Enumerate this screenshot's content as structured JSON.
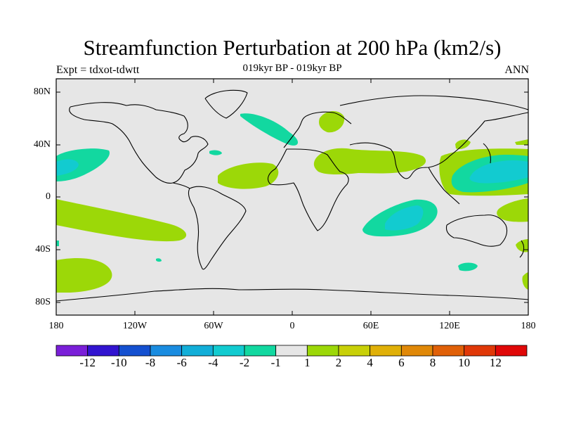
{
  "title": "Streamfunction Perturbation at 200 hPa (km2/s)",
  "experiment": "Expt = tdxot-tdwtt",
  "subtitle": "019kyr BP - 019kyr BP",
  "season": "ANN",
  "lat_labels": [
    "80N",
    "40N",
    "0",
    "40S",
    "80S"
  ],
  "lon_labels": [
    "180",
    "120W",
    "60W",
    "0",
    "60E",
    "120E",
    "180"
  ],
  "colorbar": {
    "colors": [
      "#7a1fd8",
      "#3214d0",
      "#1450d0",
      "#1a8ce0",
      "#12aed8",
      "#12cbd0",
      "#12d8a0",
      "#e6e6e6",
      "#9cd808",
      "#c8d008",
      "#e0b008",
      "#e08808",
      "#e06008",
      "#e03808",
      "#e00808"
    ],
    "labels": [
      "-12",
      "-10",
      "-8",
      "-6",
      "-4",
      "-2",
      "-1",
      "1",
      "2",
      "4",
      "6",
      "8",
      "10",
      "12"
    ]
  },
  "map_colors": {
    "background": "#e6e6e6",
    "positive": "#9cd808",
    "negative": "#12d8a0",
    "strong_negative": "#12cbd0"
  }
}
